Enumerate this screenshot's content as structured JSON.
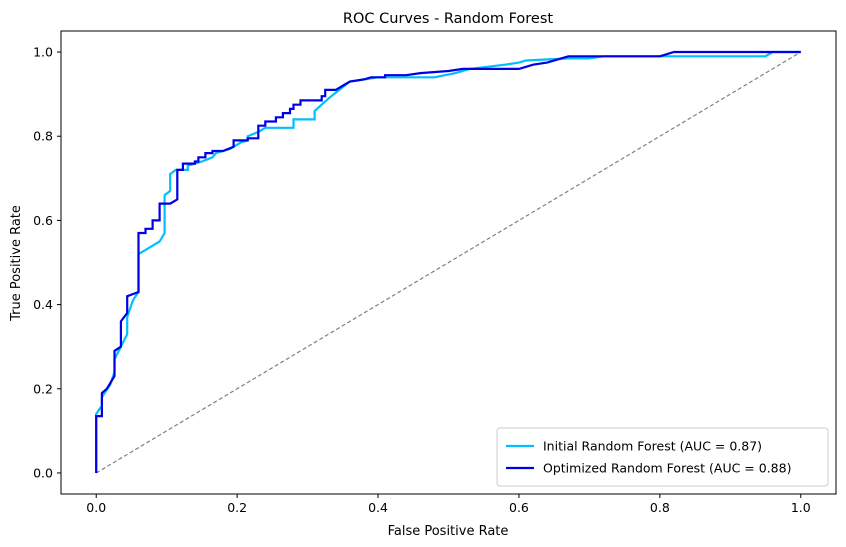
{
  "chart_data": {
    "type": "line",
    "title": "ROC Curves - Random Forest",
    "xlabel": "False Positive Rate",
    "ylabel": "True Positive Rate",
    "xlim": [
      -0.05,
      1.05
    ],
    "ylim": [
      -0.05,
      1.05
    ],
    "xticks": [
      "0.0",
      "0.2",
      "0.4",
      "0.6",
      "0.8",
      "1.0"
    ],
    "yticks": [
      "0.0",
      "0.2",
      "0.4",
      "0.6",
      "0.8",
      "1.0"
    ],
    "grid": false,
    "legend_position": "lower right",
    "series": [
      {
        "name": "Initial Random Forest (AUC = 0.87)",
        "color": "#00bfff",
        "points": [
          [
            0,
            0
          ],
          [
            0,
            0.14
          ],
          [
            0.008,
            0.16
          ],
          [
            0.008,
            0.18
          ],
          [
            0.02,
            0.21
          ],
          [
            0.026,
            0.24
          ],
          [
            0.026,
            0.27
          ],
          [
            0.035,
            0.3
          ],
          [
            0.044,
            0.33
          ],
          [
            0.044,
            0.37
          ],
          [
            0.052,
            0.41
          ],
          [
            0.06,
            0.43
          ],
          [
            0.06,
            0.52
          ],
          [
            0.07,
            0.53
          ],
          [
            0.08,
            0.54
          ],
          [
            0.09,
            0.55
          ],
          [
            0.097,
            0.57
          ],
          [
            0.097,
            0.66
          ],
          [
            0.105,
            0.67
          ],
          [
            0.105,
            0.71
          ],
          [
            0.113,
            0.72
          ],
          [
            0.13,
            0.72
          ],
          [
            0.13,
            0.73
          ],
          [
            0.15,
            0.74
          ],
          [
            0.165,
            0.75
          ],
          [
            0.17,
            0.76
          ],
          [
            0.19,
            0.77
          ],
          [
            0.205,
            0.785
          ],
          [
            0.215,
            0.79
          ],
          [
            0.215,
            0.8
          ],
          [
            0.23,
            0.81
          ],
          [
            0.24,
            0.82
          ],
          [
            0.28,
            0.82
          ],
          [
            0.28,
            0.84
          ],
          [
            0.31,
            0.84
          ],
          [
            0.31,
            0.86
          ],
          [
            0.33,
            0.89
          ],
          [
            0.345,
            0.91
          ],
          [
            0.36,
            0.93
          ],
          [
            0.4,
            0.94
          ],
          [
            0.48,
            0.94
          ],
          [
            0.51,
            0.95
          ],
          [
            0.53,
            0.96
          ],
          [
            0.58,
            0.97
          ],
          [
            0.6,
            0.975
          ],
          [
            0.61,
            0.98
          ],
          [
            0.67,
            0.985
          ],
          [
            0.7,
            0.985
          ],
          [
            0.72,
            0.99
          ],
          [
            0.95,
            0.99
          ],
          [
            0.96,
            1.0
          ],
          [
            1.0,
            1.0
          ]
        ]
      },
      {
        "name": "Optimized Random Forest (AUC = 0.88)",
        "color": "#0000e6",
        "points": [
          [
            0,
            0
          ],
          [
            0,
            0.135
          ],
          [
            0.008,
            0.135
          ],
          [
            0.008,
            0.19
          ],
          [
            0.015,
            0.2
          ],
          [
            0.026,
            0.23
          ],
          [
            0.026,
            0.29
          ],
          [
            0.035,
            0.3
          ],
          [
            0.035,
            0.36
          ],
          [
            0.044,
            0.38
          ],
          [
            0.044,
            0.42
          ],
          [
            0.06,
            0.43
          ],
          [
            0.06,
            0.57
          ],
          [
            0.07,
            0.57
          ],
          [
            0.07,
            0.58
          ],
          [
            0.08,
            0.58
          ],
          [
            0.08,
            0.6
          ],
          [
            0.09,
            0.6
          ],
          [
            0.09,
            0.64
          ],
          [
            0.105,
            0.64
          ],
          [
            0.115,
            0.65
          ],
          [
            0.115,
            0.72
          ],
          [
            0.123,
            0.72
          ],
          [
            0.123,
            0.735
          ],
          [
            0.14,
            0.735
          ],
          [
            0.14,
            0.74
          ],
          [
            0.145,
            0.74
          ],
          [
            0.145,
            0.75
          ],
          [
            0.155,
            0.75
          ],
          [
            0.155,
            0.76
          ],
          [
            0.165,
            0.76
          ],
          [
            0.165,
            0.765
          ],
          [
            0.18,
            0.765
          ],
          [
            0.195,
            0.775
          ],
          [
            0.195,
            0.79
          ],
          [
            0.215,
            0.79
          ],
          [
            0.215,
            0.795
          ],
          [
            0.23,
            0.795
          ],
          [
            0.23,
            0.825
          ],
          [
            0.24,
            0.825
          ],
          [
            0.24,
            0.835
          ],
          [
            0.255,
            0.835
          ],
          [
            0.255,
            0.845
          ],
          [
            0.265,
            0.845
          ],
          [
            0.265,
            0.855
          ],
          [
            0.275,
            0.855
          ],
          [
            0.275,
            0.865
          ],
          [
            0.28,
            0.865
          ],
          [
            0.28,
            0.875
          ],
          [
            0.29,
            0.875
          ],
          [
            0.29,
            0.885
          ],
          [
            0.32,
            0.885
          ],
          [
            0.32,
            0.895
          ],
          [
            0.325,
            0.895
          ],
          [
            0.325,
            0.91
          ],
          [
            0.34,
            0.91
          ],
          [
            0.35,
            0.92
          ],
          [
            0.36,
            0.93
          ],
          [
            0.38,
            0.935
          ],
          [
            0.39,
            0.94
          ],
          [
            0.41,
            0.94
          ],
          [
            0.41,
            0.945
          ],
          [
            0.44,
            0.945
          ],
          [
            0.46,
            0.95
          ],
          [
            0.5,
            0.955
          ],
          [
            0.52,
            0.96
          ],
          [
            0.6,
            0.96
          ],
          [
            0.62,
            0.97
          ],
          [
            0.64,
            0.975
          ],
          [
            0.66,
            0.985
          ],
          [
            0.67,
            0.99
          ],
          [
            0.8,
            0.99
          ],
          [
            0.82,
            1.0
          ],
          [
            1.0,
            1.0
          ]
        ]
      }
    ],
    "diagonal": {
      "points": [
        [
          0,
          0
        ],
        [
          1,
          1
        ]
      ],
      "color": "#808080",
      "style": "dashed"
    }
  }
}
